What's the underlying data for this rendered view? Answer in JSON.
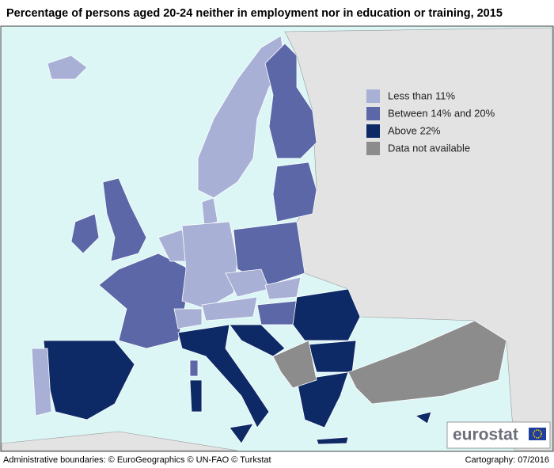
{
  "title": "Percentage of persons aged 20-24 neither in employment nor in education or training, 2015",
  "legend": [
    {
      "label": "Less than 11%",
      "color": "#a9b0d6"
    },
    {
      "label": "Between 14% and 20%",
      "color": "#5b67a6"
    },
    {
      "label": "Above 22%",
      "color": "#0d2a66"
    },
    {
      "label": "Data not available",
      "color": "#8c8c8c"
    }
  ],
  "logo": "eurostat",
  "footer": {
    "left": "Administrative boundaries: © EuroGeographics © UN-FAO © Turkstat",
    "right": "Cartography: 07/2016"
  }
}
